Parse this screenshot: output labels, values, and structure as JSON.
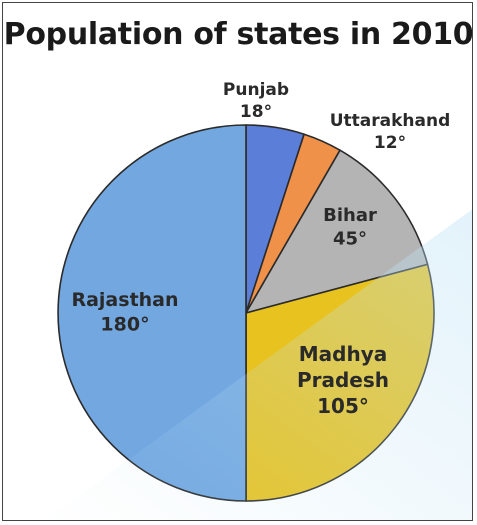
{
  "chart_data": {
    "type": "pie",
    "title": "Population of states in 2010",
    "unit": "°",
    "slices": [
      {
        "name": "Punjab",
        "value": 18,
        "label": "18°",
        "color": "#5B7FD9"
      },
      {
        "name": "Uttarakhand",
        "value": 12,
        "label": "12°",
        "color": "#F0914A"
      },
      {
        "name": "Bihar",
        "value": 45,
        "label": "45°",
        "color": "#B4B4B4"
      },
      {
        "name": "Madhya Pradesh",
        "value": 105,
        "label": "105°",
        "color": "#E8C21E"
      },
      {
        "name": "Rajasthan",
        "value": 180,
        "label": "180°",
        "color": "#72A7E0"
      }
    ]
  }
}
